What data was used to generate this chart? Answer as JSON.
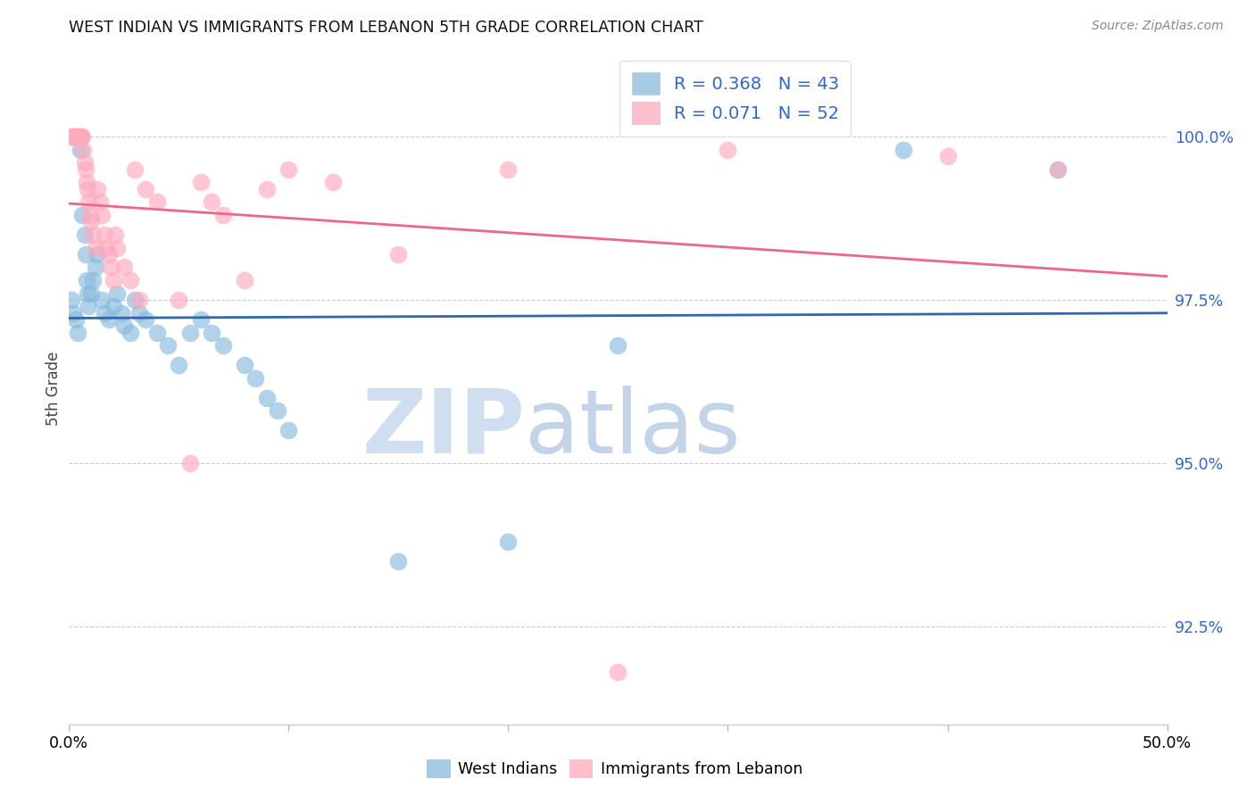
{
  "title": "WEST INDIAN VS IMMIGRANTS FROM LEBANON 5TH GRADE CORRELATION CHART",
  "source": "Source: ZipAtlas.com",
  "ylabel": "5th Grade",
  "blue_R": 0.368,
  "blue_N": 43,
  "pink_R": 0.071,
  "pink_N": 52,
  "blue_color": "#88BBDD",
  "pink_color": "#FFAABC",
  "blue_line_color": "#3366AA",
  "pink_line_color": "#EE6688",
  "legend_text_color": "#3366CC",
  "xlim_min": 0.0,
  "xlim_max": 50.0,
  "ylim_min": 91.0,
  "ylim_max": 101.3,
  "yticks": [
    92.5,
    95.0,
    97.5,
    100.0
  ],
  "blue_points_x": [
    0.1,
    0.2,
    0.3,
    0.4,
    0.5,
    0.6,
    0.7,
    0.75,
    0.8,
    0.85,
    0.9,
    1.0,
    1.1,
    1.2,
    1.3,
    1.5,
    1.6,
    1.8,
    2.0,
    2.2,
    2.4,
    2.5,
    2.8,
    3.0,
    3.2,
    3.5,
    4.0,
    4.5,
    5.0,
    5.5,
    6.0,
    6.5,
    7.0,
    8.0,
    8.5,
    9.0,
    9.5,
    10.0,
    15.0,
    20.0,
    25.0,
    38.0,
    45.0
  ],
  "blue_points_y": [
    97.5,
    97.3,
    97.2,
    97.0,
    99.8,
    98.8,
    98.5,
    98.2,
    97.8,
    97.6,
    97.4,
    97.6,
    97.8,
    98.0,
    98.2,
    97.5,
    97.3,
    97.2,
    97.4,
    97.6,
    97.3,
    97.1,
    97.0,
    97.5,
    97.3,
    97.2,
    97.0,
    96.8,
    96.5,
    97.0,
    97.2,
    97.0,
    96.8,
    96.5,
    96.3,
    96.0,
    95.8,
    95.5,
    93.5,
    93.8,
    96.8,
    99.8,
    99.5
  ],
  "pink_points_x": [
    0.1,
    0.15,
    0.2,
    0.25,
    0.3,
    0.35,
    0.4,
    0.45,
    0.5,
    0.55,
    0.6,
    0.65,
    0.7,
    0.75,
    0.8,
    0.85,
    0.9,
    0.95,
    1.0,
    1.1,
    1.2,
    1.3,
    1.4,
    1.5,
    1.6,
    1.7,
    1.8,
    1.9,
    2.0,
    2.1,
    2.2,
    2.5,
    2.8,
    3.0,
    3.5,
    4.0,
    5.0,
    5.5,
    6.0,
    7.0,
    8.0,
    9.0,
    10.0,
    12.0,
    15.0,
    20.0,
    25.0,
    30.0,
    40.0,
    45.0,
    3.2,
    6.5
  ],
  "pink_points_y": [
    100.0,
    100.0,
    100.0,
    100.0,
    100.0,
    100.0,
    100.0,
    100.0,
    100.0,
    100.0,
    100.0,
    99.8,
    99.6,
    99.5,
    99.3,
    99.2,
    99.0,
    98.8,
    98.7,
    98.5,
    98.3,
    99.2,
    99.0,
    98.8,
    98.5,
    98.3,
    98.2,
    98.0,
    97.8,
    98.5,
    98.3,
    98.0,
    97.8,
    99.5,
    99.2,
    99.0,
    97.5,
    95.0,
    99.3,
    98.8,
    97.8,
    99.2,
    99.5,
    99.3,
    98.2,
    99.5,
    91.8,
    99.8,
    99.7,
    99.5,
    97.5,
    99.0
  ]
}
